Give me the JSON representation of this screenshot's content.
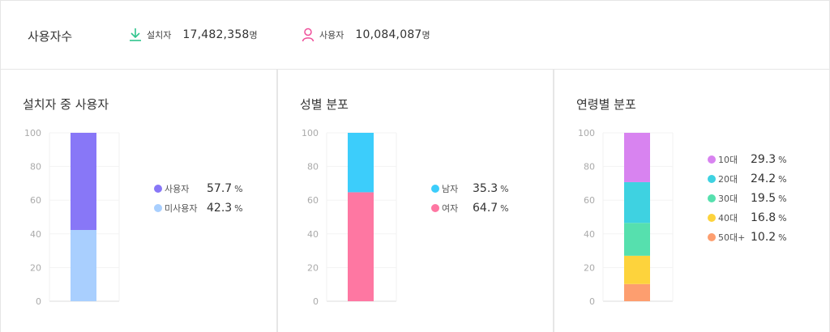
{
  "header": {
    "title": "사용자수",
    "installs": {
      "icon": "download-icon",
      "label": "설치자",
      "value": "17,482,358",
      "unit": "명",
      "color": "#2fc48d"
    },
    "users": {
      "icon": "user-icon",
      "label": "사용자",
      "value": "10,084,087",
      "unit": "명",
      "color": "#ef4f9a"
    }
  },
  "percent_unit": "%",
  "panels": [
    {
      "title": "설치자 중 사용자"
    },
    {
      "title": "성별 분포"
    },
    {
      "title": "연령별 분포"
    }
  ],
  "chart_data": [
    {
      "type": "bar",
      "stacked": true,
      "ylim": [
        0,
        100
      ],
      "yticks": [
        "100",
        "80",
        "60",
        "40",
        "20",
        "0"
      ],
      "series": [
        {
          "name": "사용자",
          "value": 57.7,
          "pct": "57.7",
          "color": "#8877f7"
        },
        {
          "name": "미사용자",
          "value": 42.3,
          "pct": "42.3",
          "color": "#a9cffe"
        }
      ]
    },
    {
      "type": "bar",
      "stacked": true,
      "ylim": [
        0,
        100
      ],
      "yticks": [
        "100",
        "80",
        "60",
        "40",
        "20",
        "0"
      ],
      "series": [
        {
          "name": "남자",
          "value": 35.3,
          "pct": "35.3",
          "color": "#3ccdfb"
        },
        {
          "name": "여자",
          "value": 64.7,
          "pct": "64.7",
          "color": "#fe77a2"
        }
      ]
    },
    {
      "type": "bar",
      "stacked": true,
      "ylim": [
        0,
        100
      ],
      "yticks": [
        "100",
        "80",
        "60",
        "40",
        "20",
        "0"
      ],
      "series": [
        {
          "name": "10대",
          "value": 29.3,
          "pct": "29.3",
          "color": "#d883f0"
        },
        {
          "name": "20대",
          "value": 24.2,
          "pct": "24.2",
          "color": "#3ed2e1"
        },
        {
          "name": "30대",
          "value": 19.5,
          "pct": "19.5",
          "color": "#56e0ae"
        },
        {
          "name": "40대",
          "value": 16.8,
          "pct": "16.8",
          "color": "#fdd33c"
        },
        {
          "name": "50대+",
          "value": 10.2,
          "pct": "10.2",
          "color": "#fd9e6f"
        }
      ]
    }
  ]
}
